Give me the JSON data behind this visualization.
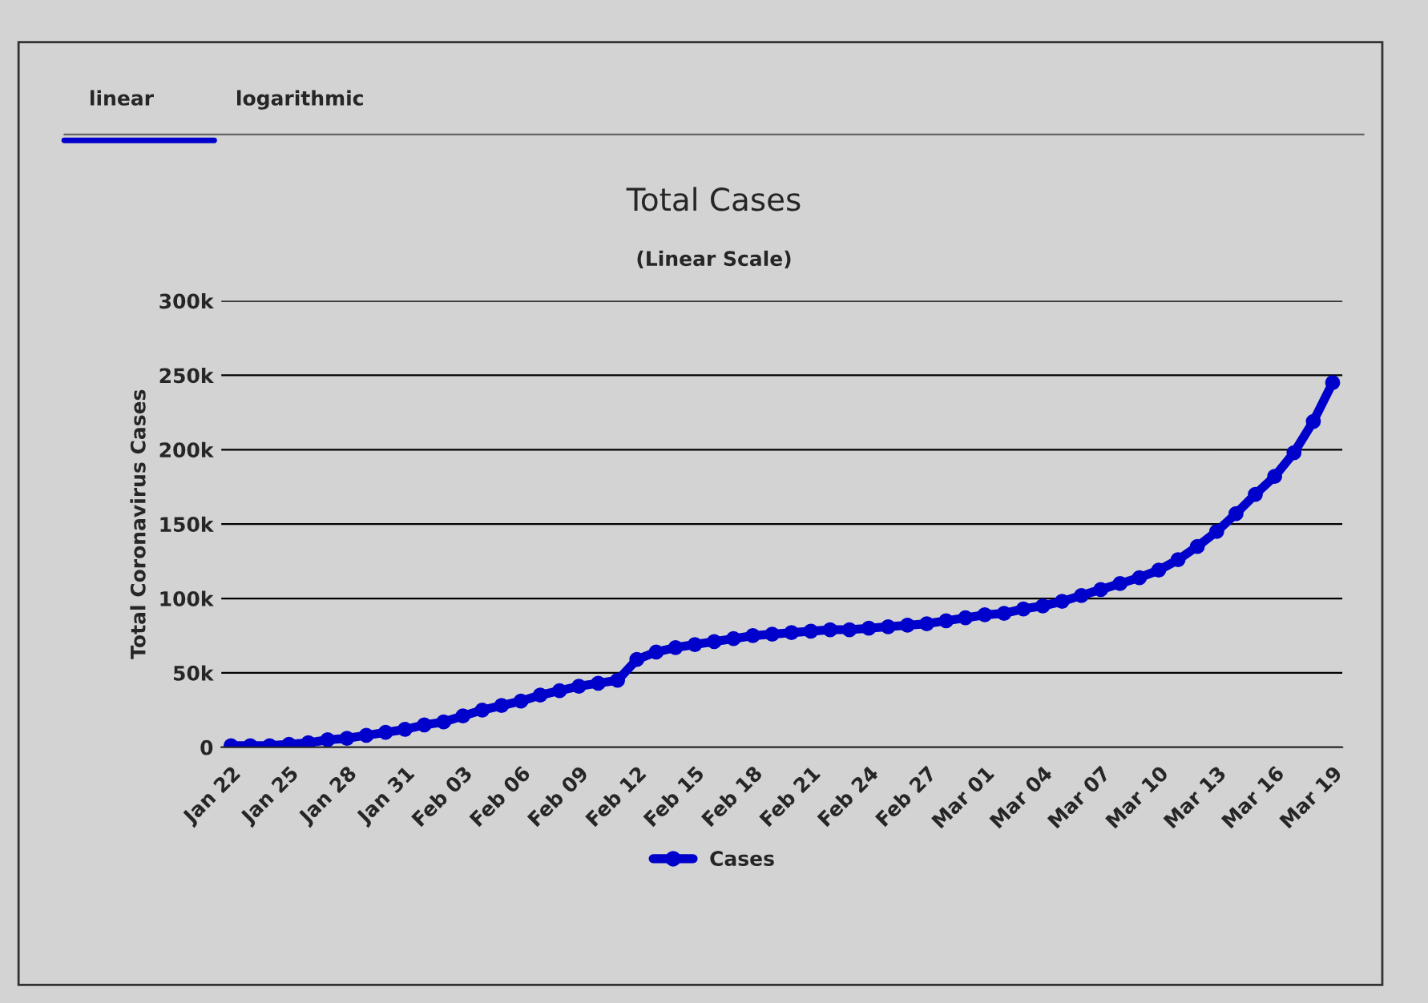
{
  "chart_data": {
    "type": "line",
    "title": "Total Cases",
    "subtitle": "(Linear Scale)",
    "ylabel": "Total Coronavirus Cases",
    "annotations": [
      "linear",
      "logarithmic"
    ],
    "categories": [
      "Jan 22",
      null,
      null,
      "Jan 25",
      null,
      null,
      "Jan 28",
      null,
      null,
      "Jan 31",
      null,
      null,
      "Feb 03",
      null,
      null,
      "Feb 06",
      null,
      null,
      "Feb 09",
      null,
      null,
      "Feb 12",
      null,
      null,
      "Feb 15",
      null,
      null,
      "Feb 18",
      null,
      null,
      "Feb 21",
      null,
      null,
      "Feb 24",
      null,
      null,
      "Feb 27",
      null,
      null,
      "Mar 01",
      null,
      null,
      "Mar 04",
      null,
      null,
      "Mar 07",
      null,
      null,
      "Mar 10",
      null,
      null,
      "Mar 13",
      null,
      null,
      "Mar 16",
      null,
      null,
      "Mar 19"
    ],
    "series": [
      {
        "name": "Cases",
        "color": "#0000cc",
        "values": [
          1000,
          1000,
          1000,
          2000,
          3000,
          5000,
          6000,
          8000,
          10000,
          12000,
          15000,
          17000,
          21000,
          25000,
          28000,
          31000,
          35000,
          38000,
          41000,
          43000,
          45000,
          59000,
          64000,
          67000,
          69000,
          71000,
          73000,
          75000,
          76000,
          77000,
          78000,
          79000,
          79000,
          80000,
          81000,
          82000,
          83000,
          85000,
          87000,
          89000,
          90000,
          93000,
          95000,
          98000,
          102000,
          106000,
          110000,
          114000,
          119000,
          126000,
          135000,
          145000,
          157000,
          170000,
          182000,
          198000,
          219000,
          245000
        ]
      }
    ],
    "ylim": [
      0,
      300000
    ],
    "yticks": [
      {
        "value": 0,
        "label": "0"
      },
      {
        "value": 50000,
        "label": "50k"
      },
      {
        "value": 100000,
        "label": "100k"
      },
      {
        "value": 150000,
        "label": "150k"
      },
      {
        "value": 200000,
        "label": "200k"
      },
      {
        "value": 250000,
        "label": "250k"
      },
      {
        "value": 300000,
        "label": "300k"
      }
    ],
    "grid": "y",
    "legend": "bottom",
    "marker": "circle",
    "line_style": "solid"
  }
}
